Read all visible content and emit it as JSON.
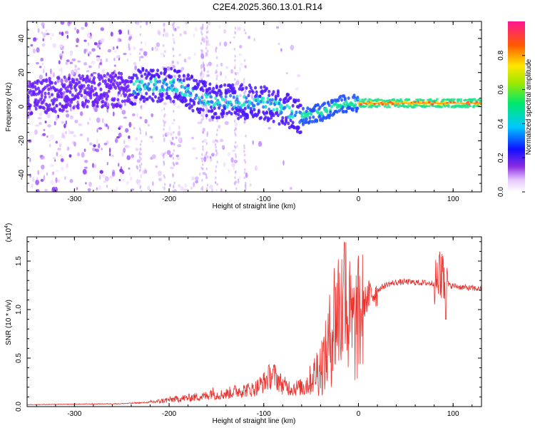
{
  "title": "C2E4.2025.360.13.01.R14",
  "chart_data": [
    {
      "type": "heatmap",
      "xlabel": "Height of straight line (km)",
      "ylabel": "Frequency (Hz)",
      "xlim": [
        -350,
        130
      ],
      "ylim": [
        -50,
        50
      ],
      "x_ticks": [
        -300,
        -200,
        -100,
        0,
        100
      ],
      "y_ticks": [
        -40,
        -20,
        0,
        20,
        40
      ],
      "x_tick_labels": [
        "-300",
        "-200",
        "-100",
        "0",
        "100"
      ],
      "y_tick_labels": [
        "-40",
        "-20",
        "0",
        "20",
        "40"
      ],
      "ridge": {
        "x": [
          -350,
          -300,
          -250,
          -220,
          -190,
          -170,
          -150,
          -120,
          -100,
          -85,
          -70,
          -62,
          -55,
          -45,
          -35,
          -25,
          -15,
          0,
          30,
          60,
          90,
          130
        ],
        "freq": [
          5,
          8,
          10,
          13,
          12,
          6,
          3,
          3,
          2,
          0,
          -4,
          -6,
          -5,
          -4,
          -3,
          0,
          2,
          2,
          2,
          2,
          2,
          2
        ]
      },
      "colorbar": {
        "label": "Normalized spectral amplitude",
        "range": [
          0,
          1
        ],
        "ticks": [
          0.0,
          0.2,
          0.4,
          0.6,
          0.8
        ],
        "tick_labels": [
          "0.0",
          "0.2",
          "0.4",
          "0.6",
          "0.8"
        ]
      }
    },
    {
      "type": "line",
      "xlabel": "Height of straight line (km)",
      "ylabel": "SNR (10 * v/v)",
      "exponent_label": "(x10",
      "exponent_sup": "4",
      "exponent_close": ")",
      "xlim": [
        -350,
        130
      ],
      "ylim": [
        0,
        17500
      ],
      "x_ticks": [
        -300,
        -200,
        -100,
        0,
        100
      ],
      "y_ticks": [
        0,
        5000,
        10000,
        15000
      ],
      "x_tick_labels": [
        "-300",
        "-200",
        "-100",
        "0",
        "100"
      ],
      "y_tick_labels": [
        "0.0",
        "0.5",
        "1.0",
        "1.5"
      ],
      "series": [
        {
          "name": "SNR",
          "color": "#e8332f",
          "x": [
            -350,
            -300,
            -250,
            -220,
            -210,
            -200,
            -180,
            -160,
            -155,
            -150,
            -140,
            -130,
            -110,
            -100,
            -95,
            -90,
            -80,
            -70,
            -60,
            -55,
            -50,
            -45,
            -40,
            -35,
            -30,
            -25,
            -20,
            -15,
            -12,
            -10,
            -5,
            0,
            5,
            10,
            20,
            30,
            40,
            50,
            60,
            70,
            80,
            85,
            90,
            95,
            100,
            110,
            120,
            130
          ],
          "y": [
            200,
            250,
            300,
            450,
            550,
            700,
            900,
            1100,
            1500,
            1200,
            1300,
            1600,
            1800,
            2500,
            3000,
            3300,
            2200,
            1900,
            2000,
            2300,
            2800,
            3600,
            4200,
            5000,
            7000,
            9500,
            10200,
            10000,
            9600,
            9000,
            8000,
            9000,
            10500,
            11300,
            12000,
            12600,
            12800,
            12850,
            12800,
            12750,
            12700,
            13200,
            12500,
            12500,
            12450,
            12300,
            12200,
            12100
          ]
        }
      ]
    }
  ],
  "colors": {
    "signal_line": "#e8332f",
    "background": "#ffffff",
    "axes": "#000000"
  }
}
